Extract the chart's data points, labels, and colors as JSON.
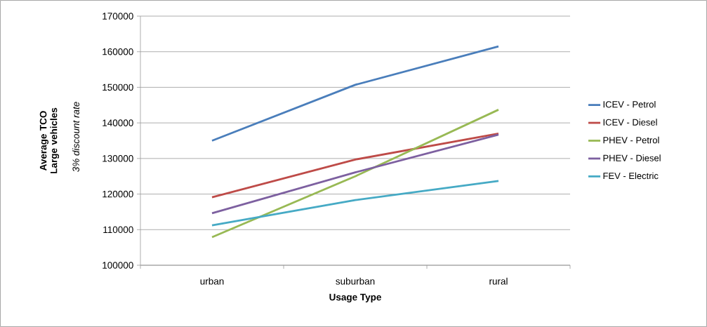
{
  "chart_data": {
    "type": "line",
    "xlabel": "Usage Type",
    "ylabel": "Average TCO Large vehicles",
    "annotations": [
      "3% discount rate"
    ],
    "categories": [
      "urban",
      "suburban",
      "rural"
    ],
    "series": [
      {
        "name": "ICEV - Petrol",
        "color": "#4a7ebb",
        "values": [
          135000,
          150700,
          161500
        ]
      },
      {
        "name": "ICEV - Diesel",
        "color": "#be4b48",
        "values": [
          119100,
          129700,
          137000
        ]
      },
      {
        "name": "PHEV - Petrol",
        "color": "#98b954",
        "values": [
          107900,
          125000,
          143700
        ]
      },
      {
        "name": "PHEV - Diesel",
        "color": "#7d60a0",
        "values": [
          114600,
          126100,
          136700
        ]
      },
      {
        "name": "FEV - Electric",
        "color": "#46aac5",
        "values": [
          111200,
          118300,
          123700
        ]
      }
    ],
    "ylim": [
      100000,
      170000
    ],
    "yticks": [
      100000,
      110000,
      120000,
      130000,
      140000,
      150000,
      160000,
      170000
    ],
    "grid": "y",
    "legend": "right"
  }
}
